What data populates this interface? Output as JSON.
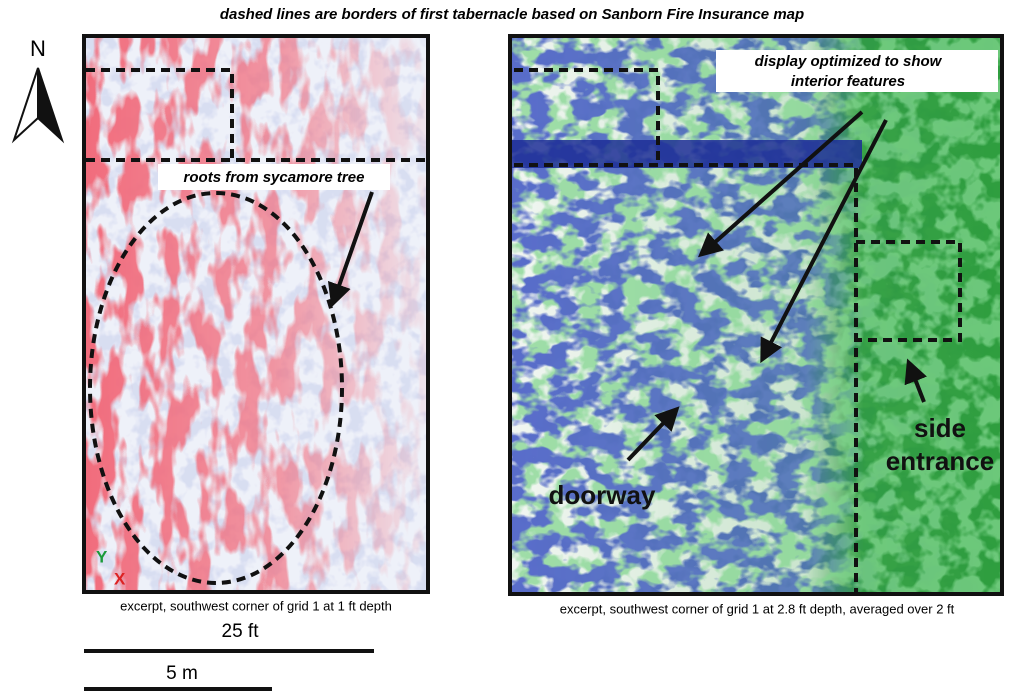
{
  "title": "dashed lines are borders of first tabernacle based on Sanborn Fire Insurance map",
  "north": "N",
  "panels": [
    {
      "caption": "excerpt, southwest corner of grid 1 at 1 ft depth",
      "annotations": [
        {
          "lines": [
            "roots from sycamore tree"
          ]
        }
      ],
      "axes": {
        "y": "Y",
        "x": "X"
      }
    },
    {
      "caption": "excerpt, southwest corner of grid 1 at 2.8 ft depth, averaged over 2 ft",
      "annotations": [
        {
          "lines": [
            "display optimized to show",
            "interior features"
          ]
        },
        {
          "lines": [
            "doorway"
          ]
        },
        {
          "lines": [
            "side",
            "entrance"
          ]
        }
      ]
    }
  ],
  "scale": {
    "ft_label": "25 ft",
    "m_label": "5 m"
  }
}
